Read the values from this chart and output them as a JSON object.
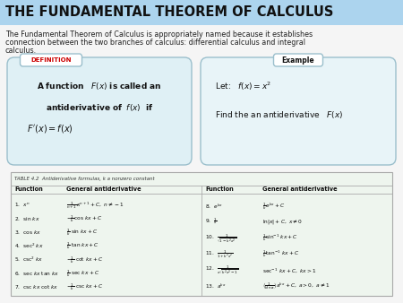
{
  "title": "THE FUNDAMENTAL THEOREM OF CALCULUS",
  "title_bg": "#acd4ee",
  "body_bg": "#f5f5f5",
  "subtitle_line1": "The Fundamental Theorem of Calculus is appropriately named because it establishes",
  "subtitle_line2": "connection between the two branches of calculus: differential calculus and integral",
  "subtitle_line3": "calculus.",
  "def_box_bg": "#dff0f5",
  "def_box_edge": "#9bbfcc",
  "def_label": "DEFINITION",
  "def_label_color": "#cc0000",
  "def_label_bg": "#ffffff",
  "ex_box_bg": "#e8f4f8",
  "ex_box_edge": "#9bbfcc",
  "ex_label": "Example",
  "ex_label_bg": "#ffffff",
  "table_bg": "#eef5ee",
  "table_edge": "#aaaaaa",
  "table_title": "TABLE 4.2  Antiderivative formulas, k a nonzero constant",
  "outer_bg": "#ffffff"
}
